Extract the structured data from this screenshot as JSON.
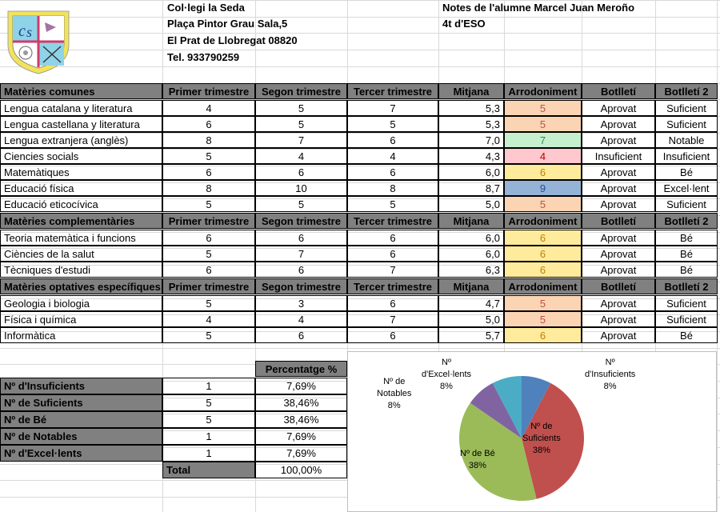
{
  "school": {
    "name": "Col·legi la Seda",
    "address": "Plaça Pintor Grau Sala,5",
    "city": "El Prat de Llobregat 08820",
    "phone": "Tel. 933790259"
  },
  "student": {
    "title": "Notes de l'alumne Marcel Juan Meroño",
    "course": "4t d'ESO"
  },
  "columns": [
    "Primer trimestre",
    "Segon trimestre",
    "Tercer trimestre",
    "Mitjana",
    "Arrodoniment",
    "Botlletí",
    "Botlletí 2"
  ],
  "sections": [
    {
      "title": "Matèries comunes",
      "rows": [
        {
          "subject": "Lengua catalana y literatura",
          "t1": "4",
          "t2": "5",
          "t3": "7",
          "avg": "5,3",
          "round": "5",
          "b1": "Aprovat",
          "b2": "Suficient",
          "color": "#fbd4b4"
        },
        {
          "subject": "Lengua castellana y literatura",
          "t1": "6",
          "t2": "5",
          "t3": "5",
          "avg": "5,3",
          "round": "5",
          "b1": "Aprovat",
          "b2": "Suficient",
          "color": "#fbd4b4"
        },
        {
          "subject": "Lengua extranjera (anglès)",
          "t1": "8",
          "t2": "7",
          "t3": "6",
          "avg": "7,0",
          "round": "7",
          "b1": "Aprovat",
          "b2": "Notable",
          "color": "#c6efce"
        },
        {
          "subject": "Ciencies socials",
          "t1": "5",
          "t2": "4",
          "t3": "4",
          "avg": "4,3",
          "round": "4",
          "b1": "Insuficient",
          "b2": "Insuficient",
          "color": "#ffc7ce"
        },
        {
          "subject": "Matemàtiques",
          "t1": "6",
          "t2": "6",
          "t3": "6",
          "avg": "6,0",
          "round": "6",
          "b1": "Aprovat",
          "b2": "Bé",
          "color": "#ffeb9c"
        },
        {
          "subject": "Educació física",
          "t1": "8",
          "t2": "10",
          "t3": "8",
          "avg": "8,7",
          "round": "9",
          "b1": "Aprovat",
          "b2": "Excel·lent",
          "color": "#95b3d7"
        },
        {
          "subject": "Educació eticocívica",
          "t1": "5",
          "t2": "5",
          "t3": "5",
          "avg": "5,0",
          "round": "5",
          "b1": "Aprovat",
          "b2": "Suficient",
          "color": "#fbd4b4"
        }
      ]
    },
    {
      "title": "Matèries complementàries",
      "rows": [
        {
          "subject": "Teoria matemàtica i funcions",
          "t1": "6",
          "t2": "6",
          "t3": "6",
          "avg": "6,0",
          "round": "6",
          "b1": "Aprovat",
          "b2": "Bé",
          "color": "#ffeb9c"
        },
        {
          "subject": "Ciències de la salut",
          "t1": "5",
          "t2": "7",
          "t3": "6",
          "avg": "6,0",
          "round": "6",
          "b1": "Aprovat",
          "b2": "Bé",
          "color": "#ffeb9c"
        },
        {
          "subject": "Tècniques d'estudi",
          "t1": "6",
          "t2": "6",
          "t3": "7",
          "avg": "6,3",
          "round": "6",
          "b1": "Aprovat",
          "b2": "Bé",
          "color": "#ffeb9c"
        }
      ]
    },
    {
      "title": "Matèries optatives específiques",
      "rows": [
        {
          "subject": "Geologia i biologia",
          "t1": "5",
          "t2": "3",
          "t3": "6",
          "avg": "4,7",
          "round": "5",
          "b1": "Aprovat",
          "b2": "Suficient",
          "color": "#fbd4b4"
        },
        {
          "subject": "Física i química",
          "t1": "4",
          "t2": "4",
          "t3": "7",
          "avg": "5,0",
          "round": "5",
          "b1": "Aprovat",
          "b2": "Suficient",
          "color": "#fbd4b4"
        },
        {
          "subject": "Informàtica",
          "t1": "5",
          "t2": "6",
          "t3": "6",
          "avg": "5,7",
          "round": "6",
          "b1": "Aprovat",
          "b2": "Bé",
          "color": "#ffeb9c"
        }
      ]
    }
  ],
  "summary": {
    "pct_header": "Percentatge %",
    "rows": [
      {
        "label": "Nº d'Insuficients",
        "count": "1",
        "pct": "7,69%"
      },
      {
        "label": "Nº de Suficients",
        "count": "5",
        "pct": "38,46%"
      },
      {
        "label": "Nº de Bé",
        "count": "5",
        "pct": "38,46%"
      },
      {
        "label": "Nº de Notables",
        "count": "1",
        "pct": "7,69%"
      },
      {
        "label": "Nº d'Excel·lents",
        "count": "1",
        "pct": "7,69%"
      }
    ],
    "total_label": "Total",
    "total_pct": "100,00%"
  },
  "chart_data": {
    "type": "pie",
    "categories": [
      "Nº d'Insuficients",
      "Nº de Suficients",
      "Nº de Bé",
      "Nº de Notables",
      "Nº d'Excel·lents"
    ],
    "values": [
      7.69,
      38.46,
      38.46,
      7.69,
      7.69
    ],
    "labels": [
      {
        "lines": [
          "Nº",
          "d'Insuficients"
        ],
        "pct": "8%"
      },
      {
        "lines": [
          "Nº de",
          "Suficients"
        ],
        "pct": "38%"
      },
      {
        "lines": [
          "Nº de Bé"
        ],
        "pct": "38%"
      },
      {
        "lines": [
          "Nº de",
          "Notables"
        ],
        "pct": "8%"
      },
      {
        "lines": [
          "Nº",
          "d'Excel·lents"
        ],
        "pct": "8%"
      }
    ],
    "colors": [
      "#4f81bd",
      "#c0504d",
      "#9bbb59",
      "#8064a2",
      "#4bacc6"
    ]
  }
}
